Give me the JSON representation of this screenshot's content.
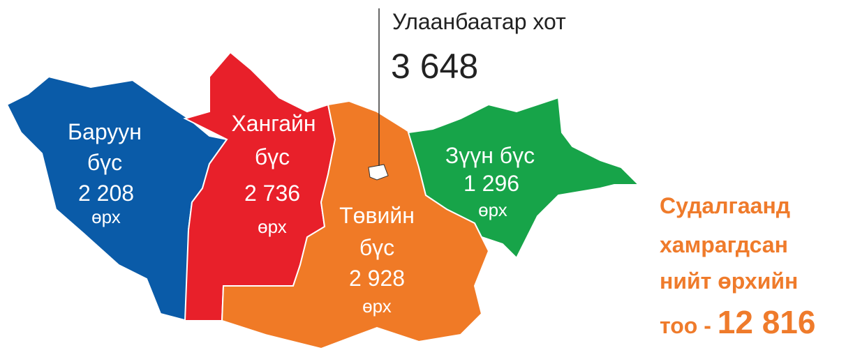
{
  "callout": {
    "title": "Улаанбаатар хот",
    "value": "3 648"
  },
  "regions": [
    {
      "name": [
        "Баруун",
        "бүс"
      ],
      "value": "2 208",
      "unit": "өрх"
    },
    {
      "name": [
        "Хангайн",
        "бүс"
      ],
      "value": "2 736",
      "unit": "өрх"
    },
    {
      "name": [
        "Төвийн",
        "бүс"
      ],
      "value": "2 928",
      "unit": "өрх"
    },
    {
      "name": [
        "Зүүн бүс"
      ],
      "value": "1 296",
      "unit": "өрх"
    }
  ],
  "total": {
    "lines": [
      "Судалгаанд",
      "хамрагдсан",
      "нийт өрхийн"
    ],
    "prefix": "тоо - ",
    "value": "12 816"
  }
}
